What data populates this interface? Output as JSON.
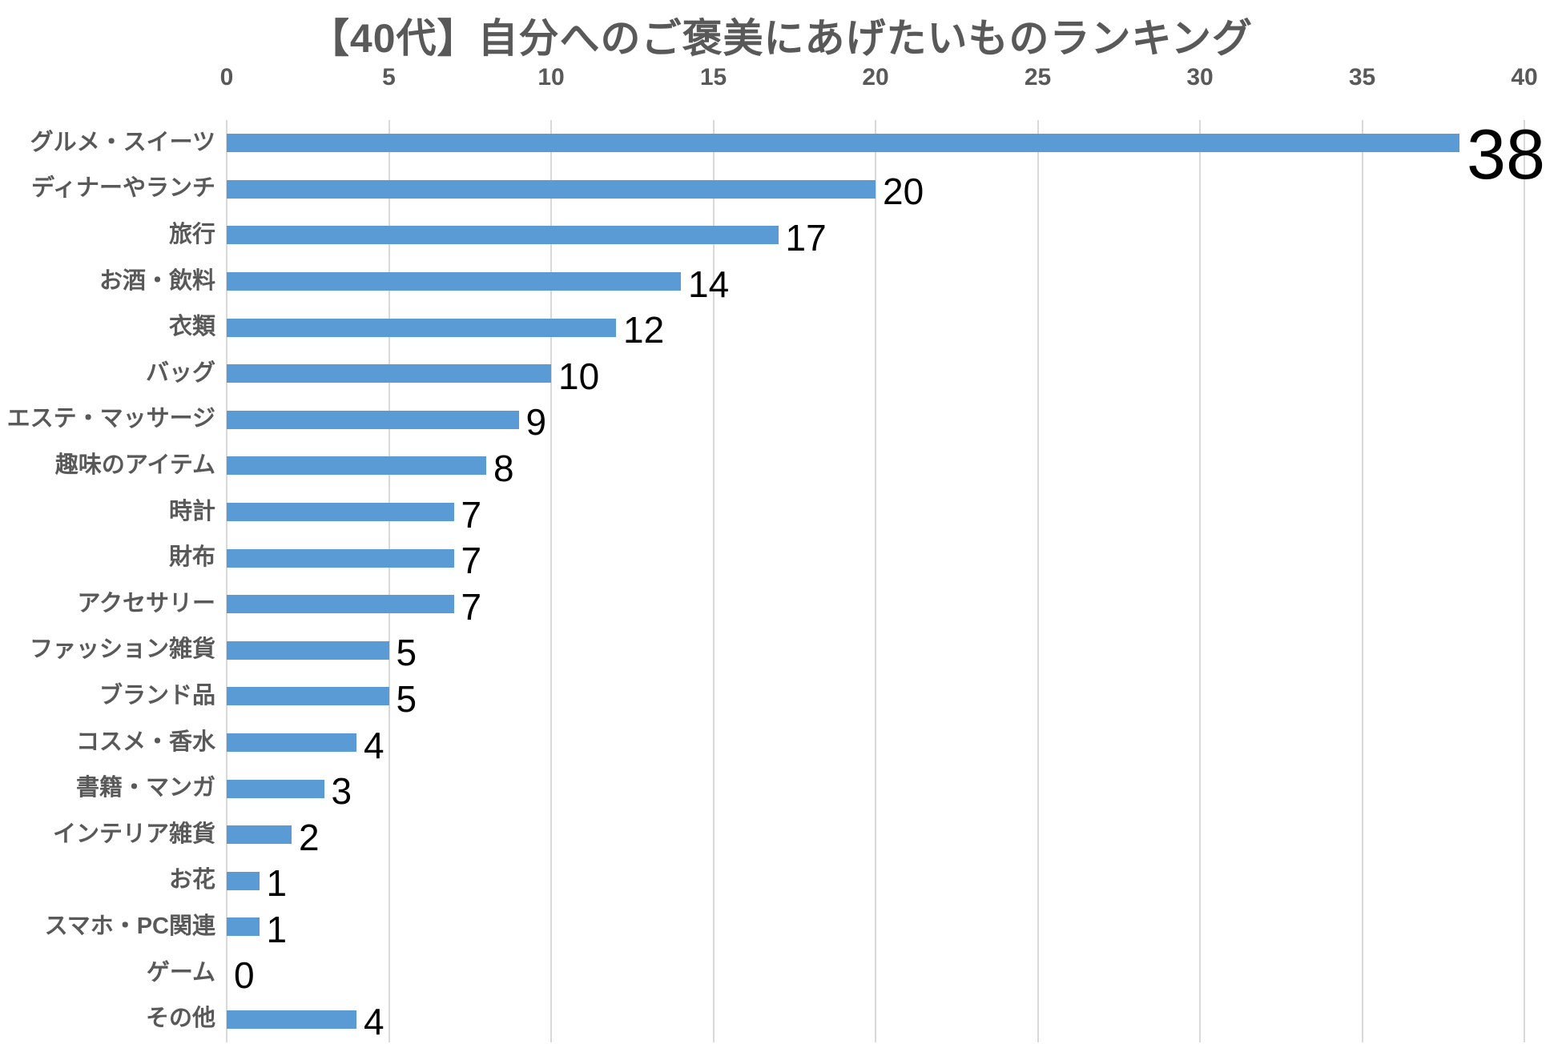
{
  "chart_data": {
    "type": "bar",
    "orientation": "horizontal",
    "title": "【40代】自分へのご褒美にあげたいものランキング",
    "categories": [
      "グルメ・スイーツ",
      "ディナーやランチ",
      "旅行",
      "お酒・飲料",
      "衣類",
      "バッグ",
      "エステ・マッサージ",
      "趣味のアイテム",
      "時計",
      "財布",
      "アクセサリー",
      "ファッション雑貨",
      "ブランド品",
      "コスメ・香水",
      "書籍・マンガ",
      "インテリア雑貨",
      "お花",
      "スマホ・PC関連",
      "ゲーム",
      "その他"
    ],
    "values": [
      38,
      20,
      17,
      14,
      12,
      10,
      9,
      8,
      7,
      7,
      7,
      5,
      5,
      4,
      3,
      2,
      1,
      1,
      0,
      4
    ],
    "xlabel": "",
    "ylabel": "",
    "xlim": [
      0,
      40
    ],
    "x_ticks": [
      0,
      5,
      10,
      15,
      20,
      25,
      30,
      35,
      40
    ],
    "grid": true,
    "legend": false,
    "data_labels": true,
    "emphasized_index": 0,
    "colors": {
      "bar": "#5B9BD5",
      "gridline": "#D9D9D9",
      "title": "#595959",
      "axis_tick_label": "#595959",
      "category_label": "#595959",
      "data_label": "#000000",
      "background": "#FFFFFF"
    }
  }
}
